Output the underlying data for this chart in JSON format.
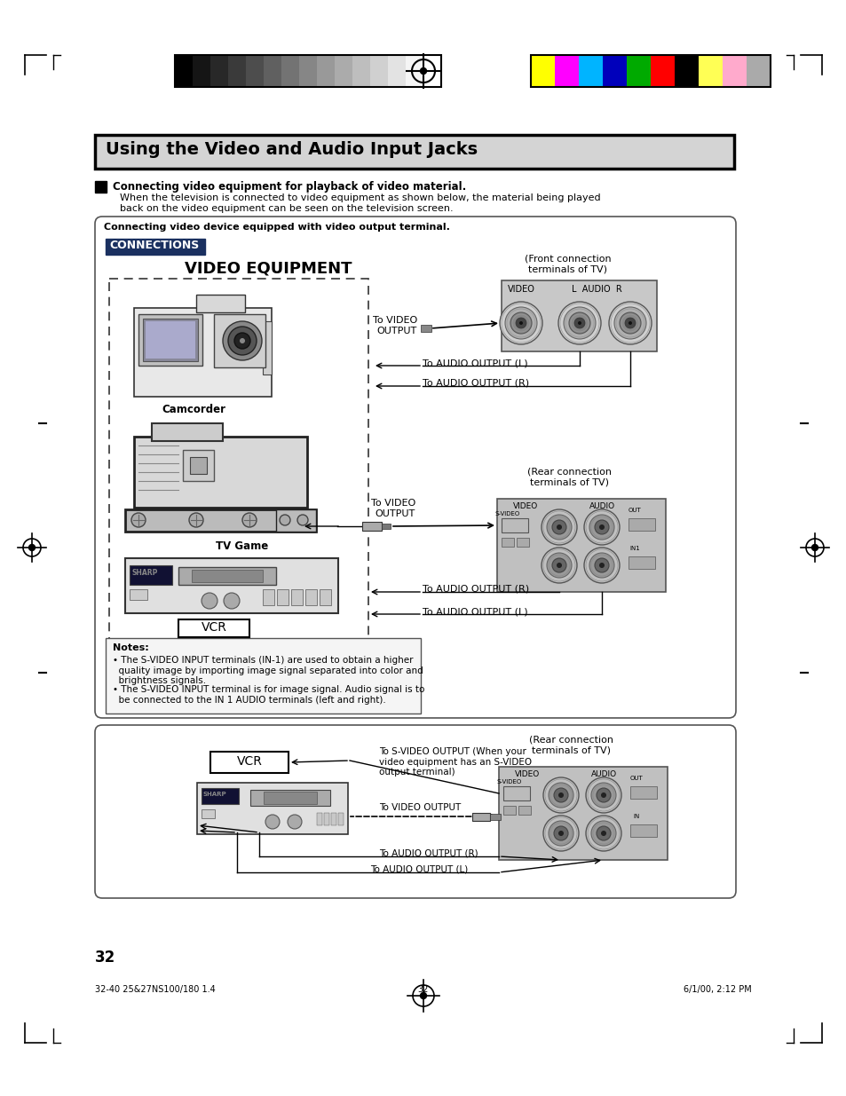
{
  "bg_color": "#ffffff",
  "page_num": "32",
  "footer_left": "32-40 25&27NS100/180 1.4",
  "footer_center": "32",
  "footer_right": "6/1/00, 2:12 PM",
  "title": "Using the Video and Audio Input Jacks",
  "section_header": "Connecting video equipment for playback of video material.",
  "bullet_text": "When the television is connected to video equipment as shown below, the material being played\nback on the video equipment can be seen on the television screen.",
  "box_label": "Connecting video device equipped with video output terminal.",
  "connections_label": "CONNECTIONS",
  "video_eq_label": "VIDEO EQUIPMENT",
  "camcorder_label": "Camcorder",
  "tvgame_label": "TV Game",
  "vcr_label": "VCR",
  "front_conn_label": "(Front connection\nterminals of TV)",
  "to_video_output1": "To VIDEO\nOUTPUT",
  "to_audio_l1": "To AUDIO OUTPUT (L)",
  "to_audio_r1": "To AUDIO OUTPUT (R)",
  "rear_conn_label": "(Rear connection\nterminals of TV)",
  "to_video_output2": "To VIDEO\nOUTPUT",
  "to_audio_r2": "To AUDIO OUTPUT (R)",
  "to_audio_l2": "To AUDIO OUTPUT (L)",
  "notes_title": "Notes:",
  "note1": "The S-VIDEO INPUT terminals (IN-1) are used to obtain a higher\nquality image by importing image signal separated into color and\nbrightness signals.",
  "note2": "The S-VIDEO INPUT terminal is for image signal. Audio signal is to\nbe connected to the IN 1 AUDIO terminals (left and right).",
  "rear_conn_label2": "(Rear connection\nterminals of TV)",
  "vcr_label2": "VCR",
  "to_svideo": "To S-VIDEO OUTPUT (When your\nvideo equipment has an S-VIDEO\noutput terminal)",
  "to_video_output3": "To VIDEO OUTPUT",
  "to_audio_r3": "To AUDIO OUTPUT (R)",
  "to_audio_l3": "To AUDIO OUTPUT (L)",
  "gs_colors": [
    "#000000",
    "#151515",
    "#282828",
    "#3a3a3a",
    "#4d4d4d",
    "#606060",
    "#737373",
    "#868686",
    "#999999",
    "#ababab",
    "#bebebe",
    "#d0d0d0",
    "#e3e3e3",
    "#f5f5f5",
    "#ffffff"
  ],
  "color_bars": [
    "#ffff00",
    "#ff00ff",
    "#00b4ff",
    "#0000bb",
    "#00aa00",
    "#ff0000",
    "#000000",
    "#ffff55",
    "#ffaacc",
    "#aaaaaa"
  ]
}
